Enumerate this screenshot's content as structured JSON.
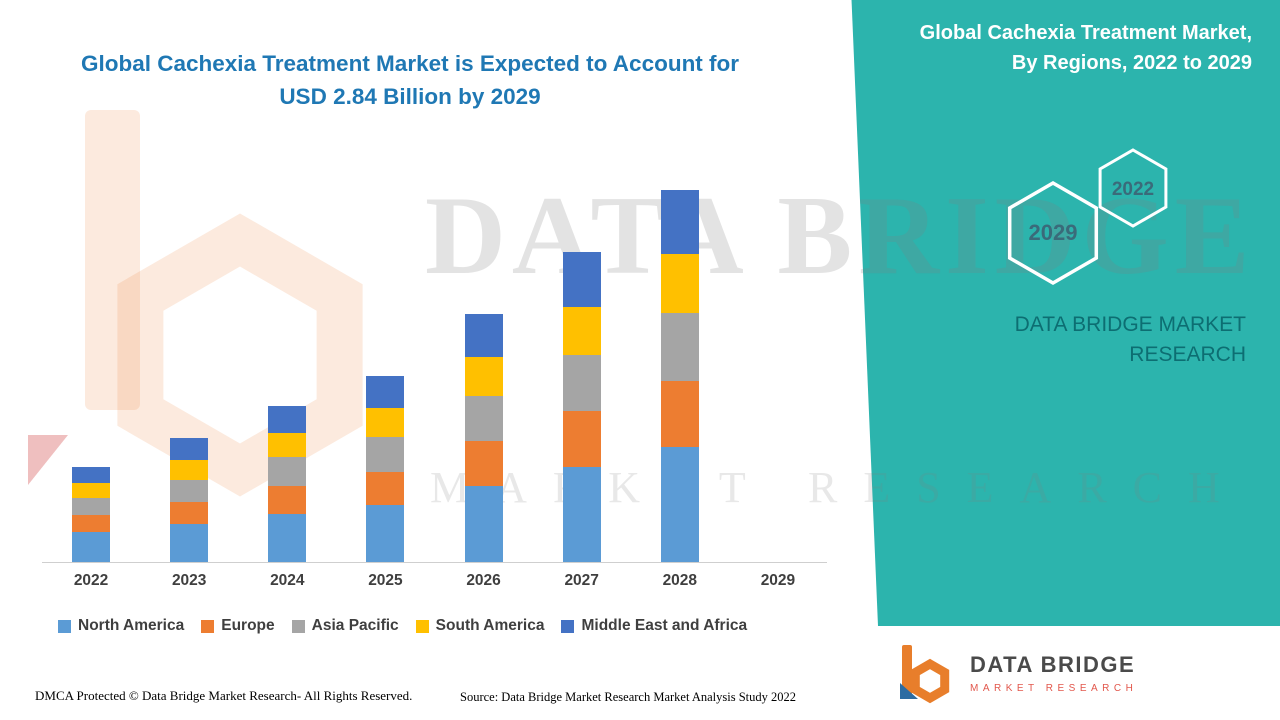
{
  "title": {
    "line1": "Global Cachexia Treatment Market is Expected to Account for",
    "line2": "USD 2.84 Billion by 2029"
  },
  "side_panel": {
    "heading": "Global Cachexia Treatment Market, By Regions, 2022 to 2029",
    "hexagon_years": [
      "2029",
      "2022"
    ],
    "brand_text": "DATA BRIDGE MARKET RESEARCH",
    "background_color": "#2CB4AD"
  },
  "watermark": {
    "line1": "DATA BRIDGE",
    "line2": "MARKET RESEARCH"
  },
  "chart_data": {
    "type": "bar",
    "stacked": true,
    "title": "Global Cachexia Treatment Market, By Regions, 2022 to 2029",
    "xlabel": "",
    "ylabel": "",
    "grid": false,
    "legend_position": "bottom",
    "values_unit": "relative height units (no y-axis labels shown in figure)",
    "note": "2029 category is labeled on the axis but its bar is not drawn",
    "categories": [
      "2022",
      "2023",
      "2024",
      "2025",
      "2026",
      "2027",
      "2028",
      "2029"
    ],
    "series": [
      {
        "name": "North America",
        "color": "#5B9BD5",
        "values": [
          30,
          38,
          48,
          57,
          76,
          95,
          114,
          0
        ]
      },
      {
        "name": "Europe",
        "color": "#ED7D31",
        "values": [
          17,
          22,
          28,
          33,
          44,
          55,
          66,
          0
        ]
      },
      {
        "name": "Asia Pacific",
        "color": "#A5A5A5",
        "values": [
          17,
          22,
          28,
          34,
          45,
          56,
          68,
          0
        ]
      },
      {
        "name": "South America",
        "color": "#FFC000",
        "values": [
          15,
          19,
          24,
          29,
          39,
          48,
          58,
          0
        ]
      },
      {
        "name": "Middle East and Africa",
        "color": "#4472C4",
        "values": [
          16,
          22,
          27,
          32,
          43,
          54,
          64,
          0
        ]
      }
    ]
  },
  "footer": {
    "dmca": "DMCA Protected © Data Bridge Market Research- All Rights Reserved.",
    "source": "Source: Data Bridge Market Research Market Analysis Study 2022"
  },
  "logo": {
    "name": "DATA BRIDGE",
    "subtitle": "MARKET RESEARCH"
  }
}
